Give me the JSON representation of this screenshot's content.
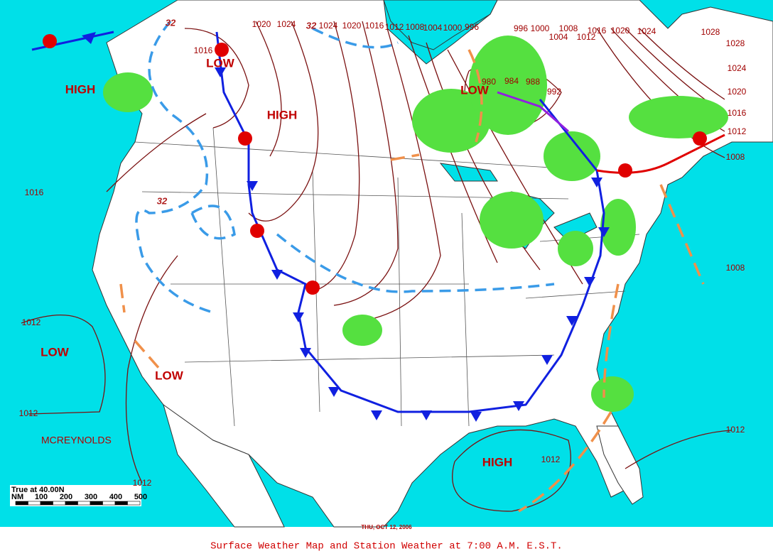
{
  "map": {
    "caption": "Surface Weather Map and Station Weather at 7:00 A.M. E.S.T.",
    "date": "THU, OCT 12, 2006",
    "analyst": "MCREYNOLDS",
    "scale": {
      "title": "True at 40.00N",
      "unit": "NM",
      "ticks": [
        100,
        200,
        300,
        400,
        500
      ]
    },
    "pressure_centers": [
      "HIGH",
      "LOW",
      "HIGH",
      "LOW",
      "LOW",
      "LOW",
      "HIGH"
    ],
    "isobar_labels": [
      "1020",
      "1024",
      "1024",
      "1020",
      "1016",
      "1012",
      "1008",
      "1004",
      "1000",
      "996",
      "996",
      "1000",
      "1008",
      "1016",
      "1020",
      "1024",
      "1004",
      "1012",
      "1028",
      "1028",
      "1024",
      "1020",
      "1016",
      "1012",
      "1008",
      "1008",
      "1016",
      "1016",
      "980",
      "984",
      "988",
      "992",
      "1012",
      "1012",
      "1012",
      "1012",
      "1012"
    ],
    "freezing_labels": [
      "32",
      "32",
      "32"
    ]
  }
}
